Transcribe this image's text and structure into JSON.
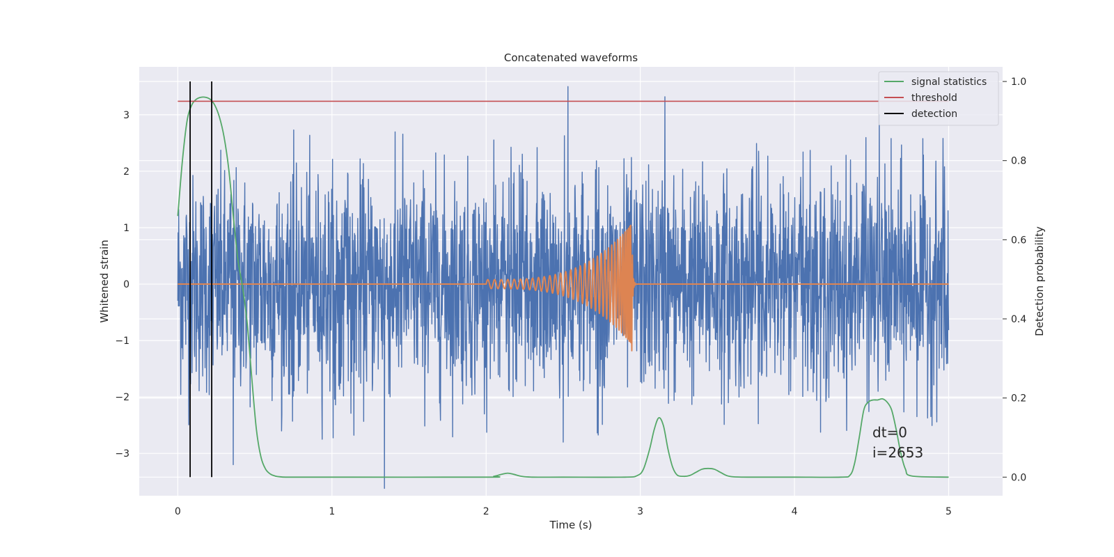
{
  "chart_data": {
    "type": "line",
    "title": "Concatenated waveforms",
    "xlabel": "Time (s)",
    "ylabel_left": "Whitened strain",
    "ylabel_right": "Detection probability",
    "xlim": [
      -0.25,
      5.35
    ],
    "ylim_left": [
      -3.75,
      3.85
    ],
    "ylim_right": [
      -0.047,
      1.037
    ],
    "x_ticks": [
      0,
      1,
      2,
      3,
      4,
      5
    ],
    "x_tick_labels": [
      "0",
      "1",
      "2",
      "3",
      "4",
      "5"
    ],
    "y_left_ticks": [
      -3,
      -2,
      -1,
      0,
      1,
      2,
      3
    ],
    "y_left_tick_labels": [
      "−3",
      "−2",
      "−1",
      "0",
      "1",
      "2",
      "3"
    ],
    "y_right_ticks": [
      0.0,
      0.2,
      0.4,
      0.6,
      0.8,
      1.0
    ],
    "y_right_tick_labels": [
      "0.0",
      "0.2",
      "0.4",
      "0.6",
      "0.8",
      "1.0"
    ],
    "grid": true,
    "legend_position": "top-right",
    "series": [
      {
        "name": "",
        "axis": "left",
        "color": "#4c72b0",
        "kind": "noise",
        "x_range": [
          0,
          5
        ],
        "spikes": [
          {
            "x": 1.34,
            "y": -3.62
          },
          {
            "x": 2.53,
            "y": 3.5
          },
          {
            "x": 3.16,
            "y": 3.32
          },
          {
            "x": 2.5,
            "y": -2.8
          },
          {
            "x": 4.55,
            "y": 3.0
          },
          {
            "x": 0.36,
            "y": -3.2
          }
        ]
      },
      {
        "name": "",
        "axis": "left",
        "color": "#dd8452",
        "kind": "chirp",
        "x_start": 2.0,
        "x_merger": 2.94,
        "x_end": 5.0,
        "peak_amplitude": 1.05,
        "min_amplitude": -1.18
      },
      {
        "name": "signal statistics",
        "axis": "right",
        "color": "#55a868",
        "x": [
          0.0,
          0.03,
          0.06,
          0.09,
          0.12,
          0.15,
          0.18,
          0.21,
          0.24,
          0.27,
          0.3,
          0.33,
          0.36,
          0.39,
          0.42,
          0.45,
          0.48,
          0.51,
          0.54,
          0.57,
          0.6,
          0.63,
          0.66,
          0.7,
          0.8,
          1.0,
          2.0,
          2.05,
          2.1,
          2.14,
          2.18,
          2.23,
          2.3,
          2.5,
          2.9,
          2.98,
          3.02,
          3.06,
          3.09,
          3.12,
          3.15,
          3.18,
          3.21,
          3.24,
          3.28,
          3.32,
          3.36,
          3.4,
          3.44,
          3.48,
          3.52,
          3.56,
          3.6,
          3.7,
          4.0,
          4.3,
          4.36,
          4.39,
          4.42,
          4.45,
          4.48,
          4.51,
          4.54,
          4.57,
          4.6,
          4.63,
          4.66,
          4.69,
          4.72,
          4.76,
          5.0
        ],
        "y": [
          0.66,
          0.8,
          0.9,
          0.94,
          0.955,
          0.96,
          0.96,
          0.955,
          0.94,
          0.91,
          0.86,
          0.78,
          0.66,
          0.55,
          0.48,
          0.39,
          0.25,
          0.12,
          0.05,
          0.02,
          0.008,
          0.003,
          0.001,
          0.0,
          0.0,
          0.0,
          0.0,
          0.002,
          0.007,
          0.01,
          0.007,
          0.002,
          0.0,
          0.0,
          0.0,
          0.004,
          0.02,
          0.07,
          0.12,
          0.15,
          0.13,
          0.07,
          0.025,
          0.005,
          0.002,
          0.004,
          0.012,
          0.02,
          0.022,
          0.02,
          0.012,
          0.004,
          0.001,
          0.0,
          0.0,
          0.0,
          0.005,
          0.035,
          0.1,
          0.17,
          0.19,
          0.195,
          0.195,
          0.198,
          0.19,
          0.17,
          0.12,
          0.06,
          0.02,
          0.003,
          0.0
        ]
      },
      {
        "name": "threshold",
        "axis": "right",
        "color": "#c44e52",
        "x": [
          0,
          5
        ],
        "y": [
          0.95,
          0.95
        ]
      },
      {
        "name": "detection",
        "axis": "right",
        "color": "#000000",
        "kind": "vlines",
        "x": [
          0.08,
          0.22
        ],
        "y_range": [
          0.0,
          1.0
        ]
      }
    ],
    "annotations": [
      "dt=0",
      "i=2653"
    ]
  }
}
